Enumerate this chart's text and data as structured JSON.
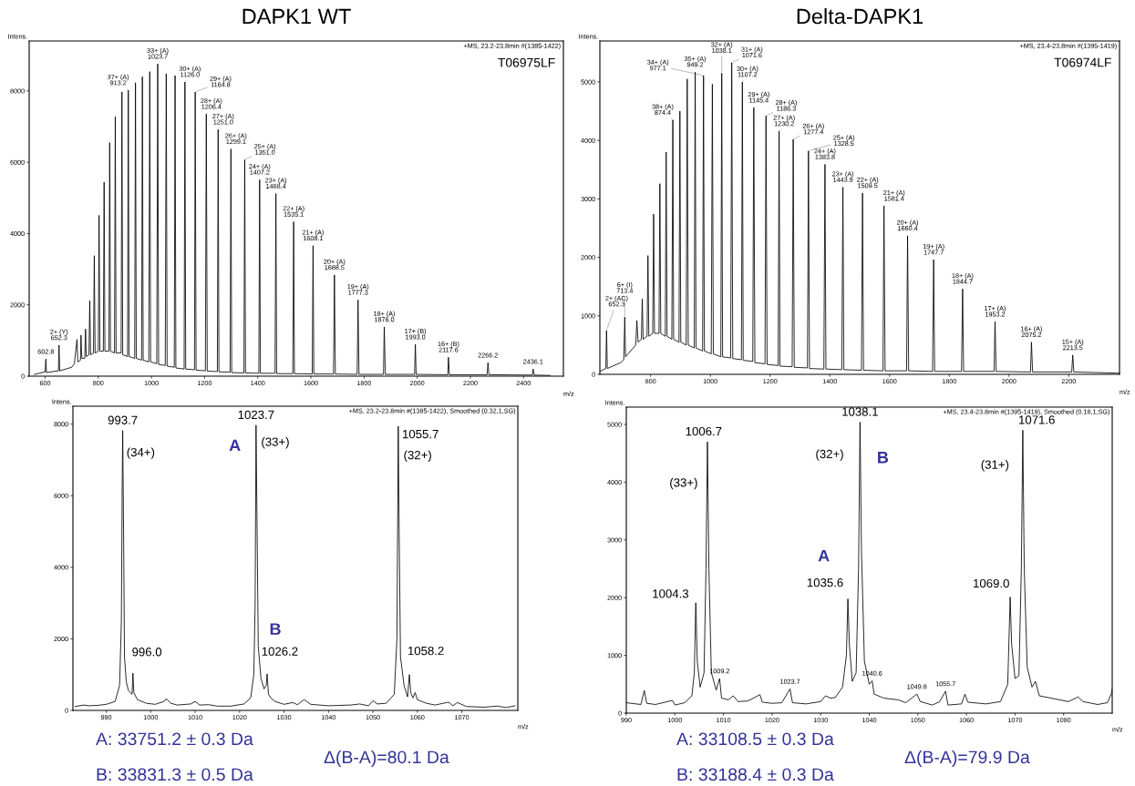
{
  "chart_data": [
    {
      "type": "line",
      "title": "DAPK1 WT",
      "xlabel": "m/z",
      "ylabel": "Intens.",
      "xlim": [
        540,
        2550
      ],
      "ylim": [
        0,
        9400
      ],
      "xticks": [
        600,
        800,
        1000,
        1200,
        1400,
        1600,
        1800,
        2000,
        2200,
        2400
      ],
      "yticks": [
        0,
        2000,
        4000,
        6000,
        8000
      ],
      "series": [
        {
          "color": "#000000",
          "x": [
            560,
            600,
            602.8,
            605,
            650,
            652.3,
            655,
            700,
            710,
            720,
            723,
            733,
            735,
            738,
            749,
            752,
            755,
            765,
            768,
            771,
            782,
            785,
            788,
            800,
            803,
            806,
            819,
            822,
            825,
            840,
            843,
            846,
            861,
            864,
            867,
            886,
            889,
            892,
            910,
            913,
            916,
            937,
            940,
            943,
            963,
            966,
            969,
            990,
            993.7,
            997,
            1020,
            1023.7,
            1027,
            1052,
            1055.7,
            1059,
            1086,
            1089,
            1092,
            1123,
            1126,
            1129,
            1162,
            1164.8,
            1168,
            1203,
            1206.4,
            1210,
            1248,
            1251,
            1254,
            1296,
            1299.1,
            1302,
            1348,
            1351,
            1354,
            1404,
            1407.2,
            1410,
            1465,
            1468.4,
            1471,
            1532,
            1535.1,
            1538,
            1605,
            1608.1,
            1611,
            1685,
            1688.5,
            1692,
            1774,
            1777.3,
            1781,
            1873,
            1876,
            1880,
            1990,
            1993,
            1996,
            2115,
            2117.6,
            2121,
            2263,
            2266.2,
            2270,
            2433,
            2436.1,
            2440,
            2500
          ],
          "values": [
            50,
            120,
            480,
            100,
            150,
            870,
            150,
            250,
            350,
            1030,
            400,
            450,
            1150,
            500,
            500,
            1320,
            550,
            600,
            2120,
            600,
            650,
            3380,
            650,
            700,
            4510,
            700,
            700,
            5440,
            700,
            700,
            6550,
            700,
            650,
            7270,
            650,
            650,
            7970,
            600,
            550,
            8020,
            550,
            500,
            8230,
            500,
            450,
            8400,
            450,
            400,
            8540,
            400,
            350,
            8760,
            330,
            300,
            8480,
            280,
            250,
            8430,
            230,
            200,
            8250,
            200,
            180,
            7970,
            170,
            150,
            7350,
            140,
            130,
            6920,
            120,
            110,
            6370,
            100,
            90,
            6070,
            90,
            80,
            5510,
            80,
            80,
            5120,
            70,
            70,
            4330,
            70,
            60,
            3660,
            60,
            60,
            2840,
            60,
            50,
            2140,
            50,
            50,
            1380,
            50,
            50,
            890,
            50,
            40,
            530,
            40,
            40,
            380,
            40,
            30,
            200,
            30,
            20
          ]
        }
      ],
      "annotations": [
        "+MS, 23.2-23.8min #(1385-1422)",
        "T06975LF",
        {
          "text": "602.8",
          "x": 602.8,
          "y": 480
        },
        {
          "text": "2+ (Y)\n652.3",
          "x": 652.3,
          "y": 870
        },
        {
          "text": "37+ (A)\n913.2",
          "x": 913,
          "y": 8020
        },
        {
          "text": "33+ (A)\n1023.7",
          "x": 1023.7,
          "y": 8760
        },
        {
          "text": "30+ (A)\n1126.0",
          "x": 1126,
          "y": 8250
        },
        {
          "text": "29+ (A)\n1164.8",
          "x": 1164.8,
          "y": 7970
        },
        {
          "text": "28+ (A)\n1206.4",
          "x": 1206.4,
          "y": 7350
        },
        {
          "text": "27+ (A)\n1251.0",
          "x": 1251,
          "y": 6920
        },
        {
          "text": "26+ (A)\n1299.1",
          "x": 1299.1,
          "y": 6370
        },
        {
          "text": "25+ (A)\n1351.0",
          "x": 1351,
          "y": 6070
        },
        {
          "text": "24+ (A)\n1407.2",
          "x": 1407.2,
          "y": 5510
        },
        {
          "text": "23+ (A)\n1468.4",
          "x": 1468.4,
          "y": 5120
        },
        {
          "text": "22+ (A)\n1535.1",
          "x": 1535.1,
          "y": 4330
        },
        {
          "text": "21+ (A)\n1608.1",
          "x": 1608.1,
          "y": 3660
        },
        {
          "text": "20+ (A)\n1688.5",
          "x": 1688.5,
          "y": 2840
        },
        {
          "text": "19+ (A)\n1777.3",
          "x": 1777.3,
          "y": 2140
        },
        {
          "text": "18+ (A)\n1876.0",
          "x": 1876,
          "y": 1380
        },
        {
          "text": "17+ (B)\n1993.0",
          "x": 1993,
          "y": 890
        },
        {
          "text": "16+ (B)\n2117.6",
          "x": 2117.6,
          "y": 530
        },
        {
          "text": "2266.2",
          "x": 2266.2,
          "y": 380
        },
        {
          "text": "2436.1",
          "x": 2436.1,
          "y": 200
        }
      ]
    },
    {
      "type": "line",
      "title": "Delta-DAPK1",
      "xlabel": "m/z",
      "ylabel": "Intens.",
      "xlim": [
        630,
        2370
      ],
      "ylim": [
        0,
        5700
      ],
      "xticks": [
        800,
        1000,
        1200,
        1400,
        1600,
        1800,
        2000,
        2200
      ],
      "yticks": [
        0,
        1000,
        2000,
        3000,
        4000,
        5000
      ],
      "series": [
        {
          "color": "#000000",
          "x": [
            630,
            650,
            652.3,
            655,
            700,
            710,
            713.4,
            716,
            750,
            754,
            758,
            769,
            772,
            775,
            788,
            791,
            794,
            807,
            810,
            813,
            828,
            831,
            834,
            849,
            852,
            855,
            871,
            874.4,
            877,
            895,
            898,
            901,
            919,
            922.5,
            926,
            946,
            949.2,
            952,
            974,
            977.1,
            980,
            1003,
            1006.7,
            1010,
            1035,
            1038.1,
            1041,
            1068,
            1071.6,
            1075,
            1104,
            1107.2,
            1110,
            1142,
            1145.4,
            1149,
            1183,
            1186.3,
            1190,
            1227,
            1230.2,
            1233,
            1274,
            1277.4,
            1281,
            1325,
            1328.5,
            1332,
            1380,
            1383.8,
            1387,
            1440,
            1443.9,
            1447,
            1506,
            1509.5,
            1513,
            1578,
            1581.4,
            1585,
            1657,
            1660.4,
            1664,
            1744,
            1747.7,
            1751,
            1841,
            1844.7,
            1848,
            1950,
            1953.2,
            1957,
            2072,
            2075.2,
            2079,
            2210,
            2213.5,
            2217,
            2370
          ],
          "values": [
            50,
            100,
            750,
            100,
            200,
            250,
            980,
            300,
            500,
            920,
            550,
            600,
            1290,
            600,
            650,
            2030,
            650,
            700,
            2740,
            700,
            700,
            3260,
            700,
            650,
            3800,
            650,
            600,
            4350,
            600,
            550,
            4500,
            550,
            500,
            5050,
            500,
            450,
            5170,
            450,
            400,
            5110,
            400,
            350,
            4960,
            350,
            300,
            5150,
            300,
            280,
            5330,
            270,
            250,
            5000,
            240,
            220,
            4560,
            200,
            180,
            4420,
            170,
            150,
            4160,
            140,
            130,
            4020,
            120,
            110,
            3820,
            100,
            90,
            3590,
            90,
            80,
            3200,
            80,
            70,
            3100,
            70,
            60,
            2880,
            60,
            60,
            2370,
            60,
            50,
            1960,
            50,
            50,
            1460,
            50,
            50,
            900,
            50,
            40,
            550,
            40,
            40,
            330,
            40,
            20
          ]
        }
      ],
      "annotations": [
        "+MS, 23.4-23.8min #(1395-1419)",
        "T06974LF",
        {
          "text": "2+ (AC)\n652.3",
          "x": 652.3,
          "y": 750
        },
        {
          "text": "6+ (I)\n713.4",
          "x": 713.4,
          "y": 980
        },
        {
          "text": "38+ (A)\n874.4",
          "x": 874.4,
          "y": 4350
        },
        {
          "text": "35+ (A)\n949.2",
          "x": 949.2,
          "y": 5170
        },
        {
          "text": "34+ (A)\n977.1",
          "x": 977.1,
          "y": 5110
        },
        {
          "text": "32+ (A)\n1038.1",
          "x": 1038.1,
          "y": 5150
        },
        {
          "text": "31+ (A)\n1071.6",
          "x": 1071.6,
          "y": 5330
        },
        {
          "text": "30+ (A)\n1107.2",
          "x": 1107.2,
          "y": 5000
        },
        {
          "text": "29+ (A)\n1145.4",
          "x": 1145.4,
          "y": 4560
        },
        {
          "text": "28+ (A)\n1186.3",
          "x": 1186.3,
          "y": 4420
        },
        {
          "text": "27+ (A)\n1230.2",
          "x": 1230.2,
          "y": 4160
        },
        {
          "text": "26+ (A)\n1277.4",
          "x": 1277.4,
          "y": 4020
        },
        {
          "text": "25+ (A)\n1328.5",
          "x": 1328.5,
          "y": 3820
        },
        {
          "text": "24+ (A)\n1383.8",
          "x": 1383.8,
          "y": 3590
        },
        {
          "text": "23+ (A)\n1443.9",
          "x": 1443.9,
          "y": 3200
        },
        {
          "text": "22+ (A)\n1509.5",
          "x": 1509.5,
          "y": 3100
        },
        {
          "text": "21+ (A)\n1581.4",
          "x": 1581.4,
          "y": 2880
        },
        {
          "text": "20+ (A)\n1660.4",
          "x": 1660.4,
          "y": 2370
        },
        {
          "text": "19+ (A)\n1747.7",
          "x": 1747.7,
          "y": 1960
        },
        {
          "text": "18+ (A)\n1844.7",
          "x": 1844.7,
          "y": 1460
        },
        {
          "text": "17+ (A)\n1953.2",
          "x": 1953.2,
          "y": 900
        },
        {
          "text": "16+ (A)\n2075.2",
          "x": 2075.2,
          "y": 550
        },
        {
          "text": "15+ (A)\n2213.5",
          "x": 2213.5,
          "y": 330
        }
      ]
    },
    {
      "type": "line",
      "xlabel": "m/z",
      "ylabel": "Intens.",
      "xlim": [
        982.5,
        1082.6
      ],
      "ylim": [
        0,
        8500
      ],
      "xticks": [
        990,
        1000,
        1010,
        1020,
        1030,
        1040,
        1050,
        1060,
        1070
      ],
      "yticks": [
        0,
        2000,
        4000,
        6000,
        8000
      ],
      "series": [
        {
          "color": "#000000",
          "x": [
            983,
            985,
            986,
            988,
            990,
            992,
            993,
            993.4,
            993.6,
            993.7,
            993.9,
            994.1,
            994.5,
            995,
            995.8,
            996.0,
            996.2,
            997,
            999,
            1001,
            1003,
            1003.5,
            1004.5,
            1006,
            1009,
            1010,
            1011,
            1013,
            1015,
            1018,
            1021,
            1022.5,
            1023.2,
            1023.5,
            1023.7,
            1023.9,
            1024.2,
            1024.8,
            1025.5,
            1026.0,
            1026.2,
            1026.5,
            1027,
            1028,
            1030,
            1032,
            1033,
            1034.5,
            1036,
            1040,
            1045,
            1047,
            1049,
            1050,
            1051,
            1053,
            1054.8,
            1055.4,
            1055.7,
            1055.9,
            1056.2,
            1057,
            1057.8,
            1058.2,
            1058.5,
            1059,
            1059.5,
            1060,
            1062,
            1064,
            1067,
            1068,
            1069,
            1071,
            1075,
            1078,
            1080,
            1082
          ],
          "values": [
            110,
            150,
            130,
            140,
            170,
            250,
            700,
            2500,
            6500,
            7820,
            5000,
            1500,
            800,
            550,
            450,
            1040,
            500,
            300,
            200,
            170,
            250,
            330,
            200,
            150,
            180,
            250,
            150,
            160,
            120,
            120,
            180,
            350,
            1000,
            3000,
            7970,
            5500,
            1800,
            900,
            600,
            700,
            1020,
            450,
            350,
            250,
            170,
            220,
            160,
            300,
            170,
            130,
            150,
            180,
            130,
            270,
            180,
            200,
            450,
            2000,
            7940,
            5000,
            1500,
            700,
            380,
            1000,
            500,
            350,
            500,
            300,
            200,
            150,
            230,
            130,
            220,
            110,
            90,
            120,
            80,
            130
          ]
        }
      ],
      "annotations": [
        "+MS, 23.2-23.8min #(1385-1422), Smoothed (0.32,1,SG)",
        "A: 33751.2 ± 0.3 Da",
        "B: 33831.3 ± 0.5 Da",
        "Δ(B-A)=80.1 Da",
        "(32+)",
        "B",
        {
          "text": "993.7",
          "x": 993.7,
          "y": 7820
        },
        {
          "text": "(34+)",
          "x": 993.7,
          "y": 7820
        },
        {
          "text": "A",
          "x": 1023.7,
          "y": 7970
        },
        {
          "text": "1023.7",
          "x": 1023.7,
          "y": 7970
        },
        {
          "text": "(33+)",
          "x": 1023.7,
          "y": 7970
        },
        {
          "text": "1055.7",
          "x": 1055.7,
          "y": 7940
        },
        {
          "text": "996.0",
          "x": 996.0,
          "y": 1040
        },
        {
          "text": "1026.2",
          "x": 1026.2,
          "y": 1020
        },
        {
          "text": "1058.2",
          "x": 1058.2,
          "y": 1000
        }
      ]
    },
    {
      "type": "line",
      "xlabel": "m/z",
      "ylabel": "Intens.",
      "xlim": [
        990,
        1090
      ],
      "ylim": [
        0,
        5300
      ],
      "xticks": [
        990,
        1000,
        1010,
        1020,
        1030,
        1040,
        1050,
        1060,
        1070,
        1080
      ],
      "yticks": [
        0,
        1000,
        2000,
        3000,
        4000,
        5000
      ],
      "series": [
        {
          "color": "#000000",
          "x": [
            990,
            993,
            993.7,
            994.2,
            996,
            999.5,
            1000,
            1002,
            1003.5,
            1004.0,
            1004.3,
            1004.6,
            1005.2,
            1006.0,
            1006.4,
            1006.7,
            1007.0,
            1007.5,
            1008.5,
            1009.2,
            1009.6,
            1011,
            1012,
            1013,
            1015,
            1017.5,
            1018,
            1020,
            1022,
            1023.7,
            1024.2,
            1027,
            1030,
            1031,
            1032,
            1033,
            1034.5,
            1035.3,
            1035.6,
            1035.9,
            1036.5,
            1037.3,
            1037.8,
            1038.1,
            1038.4,
            1039,
            1040,
            1040.6,
            1041,
            1043,
            1046,
            1047.5,
            1049.8,
            1050.5,
            1053,
            1054.5,
            1055.7,
            1056.2,
            1059,
            1059.7,
            1060.3,
            1064,
            1067,
            1068.5,
            1069.0,
            1069.3,
            1070,
            1070.8,
            1071.3,
            1071.6,
            1071.9,
            1072.5,
            1073.5,
            1074.2,
            1075,
            1078,
            1081,
            1083,
            1084,
            1087,
            1089,
            1089.9,
            1090
          ],
          "values": [
            180,
            150,
            390,
            170,
            150,
            220,
            140,
            180,
            300,
            700,
            1910,
            900,
            450,
            700,
            2500,
            4700,
            2500,
            700,
            400,
            600,
            260,
            230,
            300,
            200,
            210,
            320,
            190,
            170,
            180,
            420,
            180,
            160,
            200,
            300,
            260,
            270,
            450,
            1000,
            1980,
            1200,
            550,
            700,
            2500,
            5040,
            2800,
            900,
            500,
            560,
            330,
            260,
            230,
            180,
            330,
            200,
            140,
            200,
            380,
            140,
            160,
            330,
            190,
            160,
            200,
            500,
            2010,
            1200,
            600,
            650,
            2500,
            4900,
            2500,
            800,
            450,
            550,
            300,
            250,
            200,
            280,
            200,
            150,
            180,
            350,
            420
          ]
        }
      ],
      "annotations": [
        "+MS, 23.4-23.8min #(1395-1419), Smoothed (0.18,1,SG)",
        "A: 33108.5 ± 0.3 Da",
        "B: 33188.4 ± 0.3 Da",
        "Δ(B-A)=79.9 Da",
        "(33+)",
        {
          "text": "1006.7",
          "x": 1006.7,
          "y": 4700
        },
        {
          "text": "1004.3",
          "x": 1004.3,
          "y": 1910
        },
        {
          "text": "1038.1",
          "x": 1038.1,
          "y": 5040
        },
        {
          "text": "(32+)",
          "x": 1038.1,
          "y": 5040
        },
        {
          "text": "B",
          "x": 1038.1,
          "y": 5040
        },
        {
          "text": "A",
          "x": 1035.6,
          "y": 1980
        },
        {
          "text": "1035.6",
          "x": 1035.6,
          "y": 1980
        },
        {
          "text": "1071.6",
          "x": 1071.6,
          "y": 4900
        },
        {
          "text": "(31+)",
          "x": 1071.6,
          "y": 4900
        },
        {
          "text": "1069.0",
          "x": 1069.0,
          "y": 2010
        },
        {
          "text": "1009.2",
          "x": 1009.2,
          "y": 600
        },
        {
          "text": "1023.7",
          "x": 1023.7,
          "y": 420
        },
        {
          "text": "1040.6",
          "x": 1040.6,
          "y": 560
        },
        {
          "text": "1049.8",
          "x": 1049.8,
          "y": 330
        },
        {
          "text": "1055.7",
          "x": 1055.7,
          "y": 380
        }
      ]
    }
  ]
}
